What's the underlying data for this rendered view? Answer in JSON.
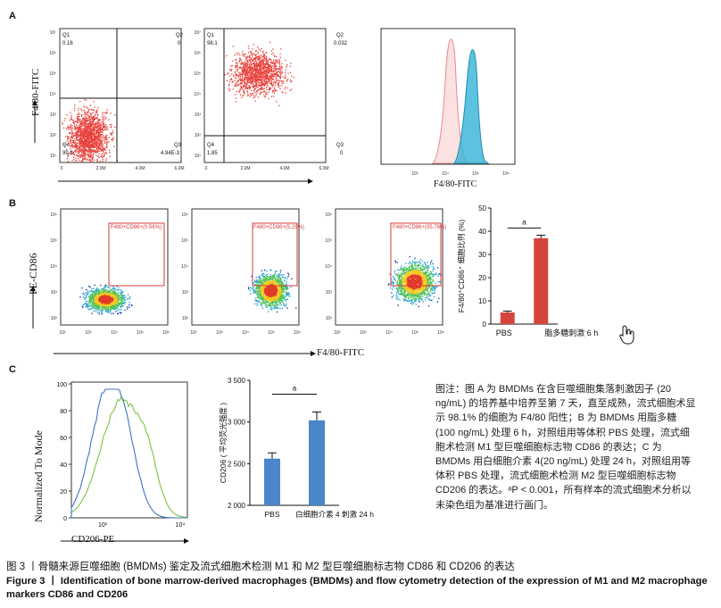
{
  "panel_labels": {
    "a": "A",
    "b": "B",
    "c": "C"
  },
  "panel_a": {
    "y_axis": "F4/80-FITC",
    "x_axis_hist": "F4/80-FITC",
    "y_ticks": [
      "10⁷",
      "10⁶",
      "10⁵",
      "10⁴",
      "10³",
      "10²",
      "10¹"
    ],
    "x_ticks": [
      "0",
      "2.0M",
      "4.0M",
      "6.0M"
    ],
    "hist_x_ticks": [
      "10³",
      "10⁴",
      "10⁵",
      "10⁶"
    ],
    "plots": [
      {
        "q1_label": "Q1",
        "q1": "0.16",
        "q2_label": "Q2",
        "q2": "0",
        "q3_label": "Q3",
        "q3": "4.94E-3",
        "q4_label": "Q4",
        "q4": "99.8"
      },
      {
        "q1_label": "Q1",
        "q1": "98.1",
        "q2_label": "Q2",
        "q2": "0.032",
        "q3_label": "Q3",
        "q3": "0",
        "q4_label": "Q4",
        "q4": "1.85"
      }
    ]
  },
  "panel_b": {
    "y_axis": "PE-CD86",
    "x_axis": "F4/80-FITC",
    "y_ticks": [
      "10⁶",
      "10⁵",
      "10⁴",
      "10³",
      "10²"
    ],
    "x_ticks": [
      "10²",
      "10³",
      "10⁴",
      "10⁵",
      "10⁶"
    ],
    "gates": [
      "F480+CD86+(0.56%)",
      "F480+CD86+(5.25%)",
      "F480+CD86+(35.76%)"
    ]
  },
  "panel_c": {
    "hist_y_axis": "Normalized To Mode",
    "hist_x_axis": "CD206-PE",
    "hist_x_ticks": [
      "10¹",
      "10⁴"
    ],
    "hist_y_ticks": [
      "100",
      "80",
      "60",
      "40",
      "20",
      "0"
    ]
  },
  "chart_data": [
    {
      "type": "bar",
      "ylabel": "F4/80⁺CD86⁺ 细胞比例 (%)",
      "categories": [
        "PBS",
        "脂多糖刺激 6 h"
      ],
      "values": [
        5,
        37
      ],
      "errors": [
        0.6,
        1.3
      ],
      "ylim": [
        0,
        50
      ],
      "yticks": [
        "0",
        "10",
        "20",
        "30",
        "40",
        "50"
      ],
      "significance": "a",
      "color": "#d6453b"
    },
    {
      "type": "bar",
      "ylabel": "CD206 ( 平均荧光强度 )",
      "categories": [
        "PBS",
        "白细胞介素 4 刺激 24 h"
      ],
      "values": [
        2560,
        3020
      ],
      "errors": [
        70,
        100
      ],
      "ylim": [
        2000,
        3500
      ],
      "yticks": [
        "3 500",
        "3 000",
        "2 500",
        "2 000"
      ],
      "significance": "a",
      "color": "#4a86c8"
    }
  ],
  "note": "图注：图 A 为 BMDMs 在含巨噬细胞集落刺激因子 (20 ng/mL) 的培养基中培养至第 7 天，直至成熟，流式细胞术显示 98.1% 的细胞为 F4/80 阳性；B 为 BMDMs 用脂多糖 (100 ng/mL) 处理 6 h，对照组用等体积 PBS 处理，流式细胞术检测 M1 型巨噬细胞标志物 CD86 的表达；C 为 BMDMs 用白细胞介素 4(20 ng/mL) 处理 24 h，对照组用等体积 PBS 处理，流式细胞术检测 M2 型巨噬细胞标志物 CD206 的表达。ᵃP < 0.001，所有样本的流式细胞术分析以未染色组为基准进行画门。",
  "caption_cn": "图 3 丨骨髓来源巨噬细胞 (BMDMs) 鉴定及流式细胞术检测 M1 和 M2 型巨噬细胞标志物 CD86 和 CD206 的表达",
  "caption_en": "Figure 3 丨 Identification of bone marrow-derived macrophages (BMDMs) and flow cytometry detection of the expression of M1 and M2 macrophage markers CD86 and CD206"
}
